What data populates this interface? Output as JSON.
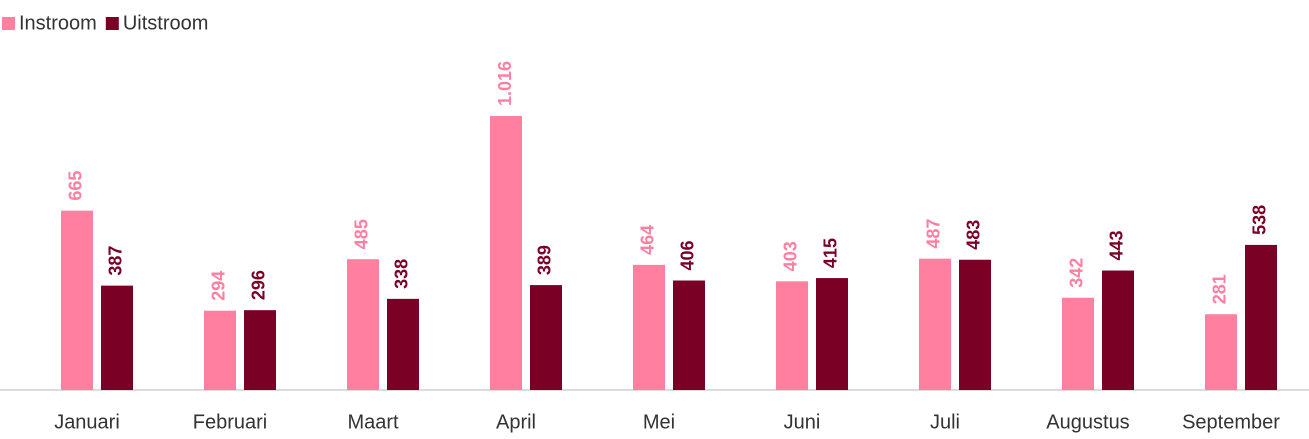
{
  "chart_data": {
    "type": "bar",
    "categories": [
      "Januari",
      "Februari",
      "Maart",
      "April",
      "Mei",
      "Juni",
      "Juli",
      "Augustus",
      "September"
    ],
    "series": [
      {
        "name": "Instroom",
        "color": "#ff7fa0",
        "values": [
          665,
          294,
          485,
          1016,
          464,
          403,
          487,
          342,
          281
        ],
        "value_labels": [
          "665",
          "294",
          "485",
          "1.016",
          "464",
          "403",
          "487",
          "342",
          "281"
        ]
      },
      {
        "name": "Uitstroom",
        "color": "#7b0025",
        "values": [
          387,
          296,
          338,
          389,
          406,
          415,
          483,
          443,
          538
        ]
      }
    ],
    "legend": "top-left"
  }
}
